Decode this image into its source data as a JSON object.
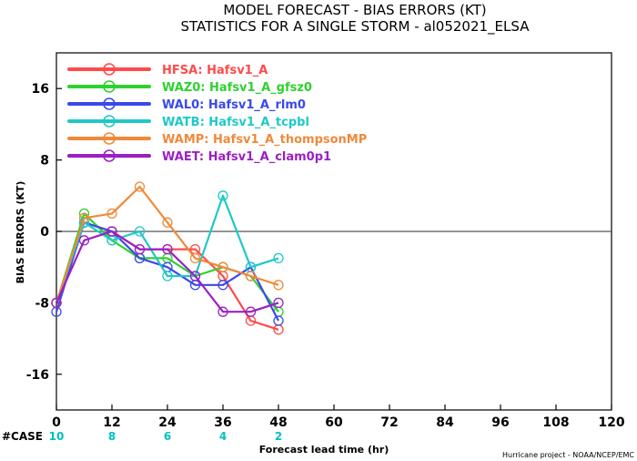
{
  "title_line1": "MODEL FORECAST - BIAS ERRORS (KT)",
  "title_line2": "STATISTICS FOR A SINGLE STORM - al052021_ELSA",
  "credit": "Hurricane project - NOAA/NCEP/EMC",
  "case_label": "#CASE",
  "case_color": "#00c0c0",
  "cases": [
    {
      "x": 0,
      "n": "10"
    },
    {
      "x": 12,
      "n": "8"
    },
    {
      "x": 24,
      "n": "6"
    },
    {
      "x": 36,
      "n": "4"
    },
    {
      "x": 48,
      "n": "2"
    }
  ],
  "chart_data": {
    "type": "line",
    "xlabel": "Forecast lead time (hr)",
    "ylabel": "BIAS ERRORS (KT)",
    "xlim": [
      0,
      120
    ],
    "ylim": [
      -20,
      20
    ],
    "xticks": [
      0,
      12,
      24,
      36,
      48,
      60,
      72,
      84,
      96,
      108,
      120
    ],
    "yticks": [
      -16,
      -8,
      0,
      8,
      16
    ],
    "zero_line": true,
    "legend_position": "top-left",
    "series": [
      {
        "name": "HFSA: Hafsv1_A",
        "color": "#ff4a4a",
        "x": [
          0,
          6,
          12,
          18,
          24,
          30,
          36,
          42,
          48
        ],
        "y": [
          -8,
          1,
          0,
          -2,
          -2,
          -2,
          -5,
          -10,
          -11
        ]
      },
      {
        "name": "WAZ0: Hafsv1_A_gfsz0",
        "color": "#2ed12e",
        "x": [
          0,
          6,
          12,
          18,
          24,
          30,
          36,
          42,
          48
        ],
        "y": [
          -8,
          2,
          -1,
          -3,
          -3,
          -5,
          -4,
          -5,
          -9
        ]
      },
      {
        "name": "WAL0: Hafsv1_A_rlm0",
        "color": "#3a4ae8",
        "x": [
          0,
          6,
          12,
          18,
          24,
          30,
          36,
          42,
          48
        ],
        "y": [
          -9,
          1,
          0,
          -3,
          -4,
          -6,
          -6,
          -4,
          -10
        ]
      },
      {
        "name": "WATB: Hafsv1_A_tcpbl",
        "color": "#1fc8c8",
        "x": [
          0,
          6,
          12,
          18,
          24,
          30,
          36,
          42,
          48
        ],
        "y": [
          -8,
          1,
          -1,
          0,
          -5,
          -5,
          4,
          -4,
          -3
        ]
      },
      {
        "name": "WAMP: Hafsv1_A_thompsonMP",
        "color": "#f0893a",
        "x": [
          0,
          6,
          12,
          18,
          24,
          30,
          36,
          42,
          48
        ],
        "y": [
          -8,
          1.5,
          2,
          5,
          1,
          -3,
          -4,
          -5,
          -6
        ]
      },
      {
        "name": "WAET: Hafsv1_A_clam0p1",
        "color": "#9b1fc4",
        "x": [
          0,
          6,
          12,
          18,
          24,
          30,
          36,
          42,
          48
        ],
        "y": [
          -8,
          -1,
          0,
          -2,
          -2,
          -5,
          -9,
          -9,
          -8
        ]
      }
    ]
  }
}
